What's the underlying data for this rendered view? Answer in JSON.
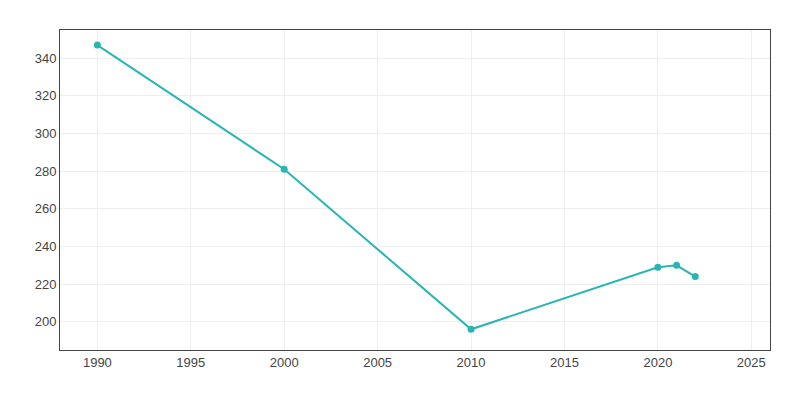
{
  "chart_data": {
    "type": "line",
    "x": [
      1990,
      2000,
      2010,
      2020,
      2021,
      2022
    ],
    "values": [
      347,
      281,
      196,
      229,
      230,
      224
    ],
    "color": "#2ab5b5",
    "marker": "circle",
    "xlim": [
      1988,
      2026
    ],
    "ylim": [
      185,
      355
    ],
    "xticks": [
      1990,
      1995,
      2000,
      2005,
      2010,
      2015,
      2020,
      2025
    ],
    "yticks": [
      200,
      220,
      240,
      260,
      280,
      300,
      320,
      340
    ],
    "grid": true
  }
}
